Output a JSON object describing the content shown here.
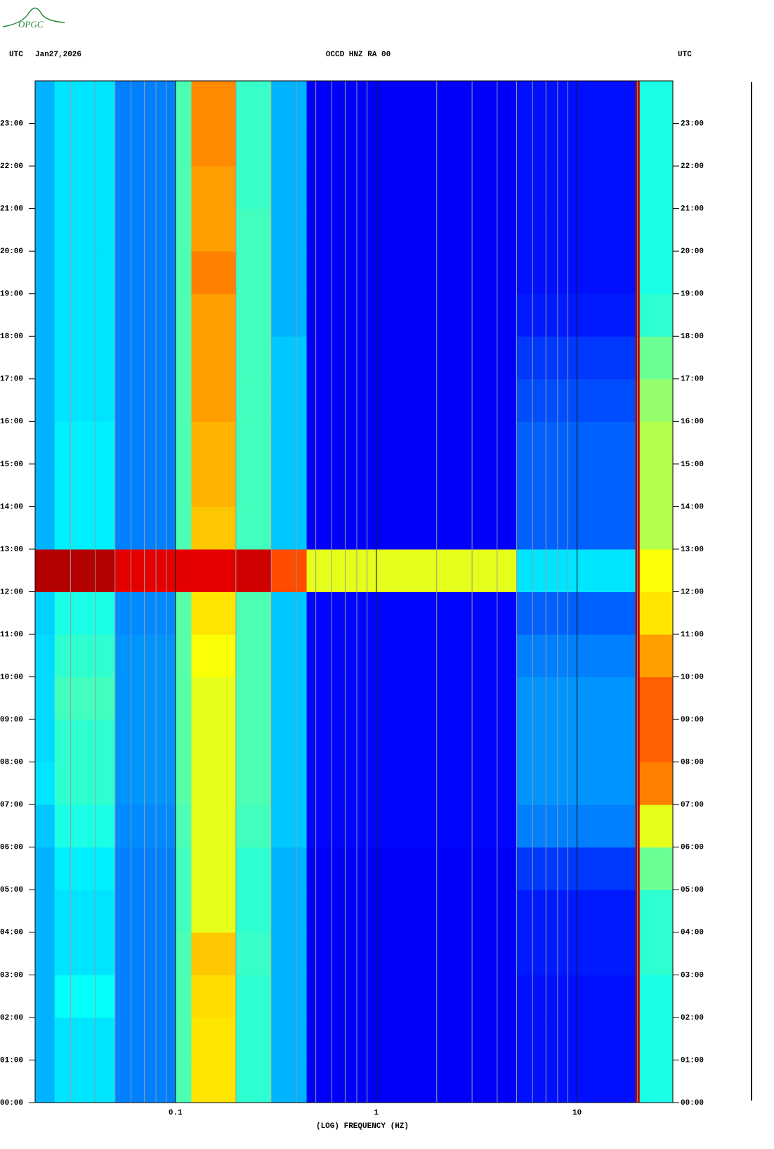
{
  "chart_data": {
    "type": "spectrogram",
    "logo": "OPGC",
    "left_label": "UTC",
    "date": "Jan27,2026",
    "title": "OCCD HNZ RA 00",
    "right_label": "UTC",
    "xlabel": "(LOG) FREQUENCY (HZ)",
    "xscale": "log",
    "colormap": "jet",
    "xlim": [
      0.02,
      30
    ],
    "ylim": [
      0,
      24
    ],
    "xticks": [
      0.1,
      1,
      10
    ],
    "xgrid": [
      0.02,
      0.03,
      0.04,
      0.05,
      0.06,
      0.07,
      0.08,
      0.09,
      0.1,
      0.2,
      0.3,
      0.4,
      0.5,
      0.6,
      0.7,
      0.8,
      0.9,
      1,
      2,
      3,
      4,
      5,
      6,
      7,
      8,
      9,
      10,
      20,
      30
    ],
    "yticks": [
      {
        "value": 0,
        "label": "00:00"
      },
      {
        "value": 1,
        "label": "01:00"
      },
      {
        "value": 2,
        "label": "02:00"
      },
      {
        "value": 3,
        "label": "03:00"
      },
      {
        "value": 4,
        "label": "04:00"
      },
      {
        "value": 5,
        "label": "05:00"
      },
      {
        "value": 6,
        "label": "06:00"
      },
      {
        "value": 7,
        "label": "07:00"
      },
      {
        "value": 8,
        "label": "08:00"
      },
      {
        "value": 9,
        "label": "09:00"
      },
      {
        "value": 10,
        "label": "10:00"
      },
      {
        "value": 11,
        "label": "11:00"
      },
      {
        "value": 12,
        "label": "12:00"
      },
      {
        "value": 13,
        "label": "13:00"
      },
      {
        "value": 14,
        "label": "14:00"
      },
      {
        "value": 15,
        "label": "15:00"
      },
      {
        "value": 16,
        "label": "16:00"
      },
      {
        "value": 17,
        "label": "17:00"
      },
      {
        "value": 18,
        "label": "18:00"
      },
      {
        "value": 19,
        "label": "19:00"
      },
      {
        "value": 20,
        "label": "20:00"
      },
      {
        "value": 21,
        "label": "21:00"
      },
      {
        "value": 22,
        "label": "22:00"
      },
      {
        "value": 23,
        "label": "23:00"
      }
    ],
    "xbins": [
      0.02,
      0.025,
      0.05,
      0.1,
      0.12,
      0.2,
      0.3,
      0.45,
      5,
      19.5,
      20.5,
      30
    ],
    "ybins": [
      0,
      1,
      2,
      3,
      4,
      5,
      6,
      7,
      8,
      9,
      10,
      11,
      12,
      13,
      14,
      15,
      16,
      17,
      18,
      19,
      20,
      21,
      22,
      23,
      24
    ],
    "values": [
      [
        0.3,
        0.35,
        0.25,
        0.45,
        0.65,
        0.42,
        0.3,
        0.12,
        0.14,
        0.95,
        0.4
      ],
      [
        0.3,
        0.35,
        0.25,
        0.45,
        0.65,
        0.42,
        0.3,
        0.12,
        0.14,
        0.95,
        0.4
      ],
      [
        0.3,
        0.38,
        0.25,
        0.45,
        0.66,
        0.42,
        0.3,
        0.12,
        0.14,
        0.95,
        0.4
      ],
      [
        0.3,
        0.35,
        0.25,
        0.45,
        0.68,
        0.43,
        0.3,
        0.12,
        0.15,
        0.95,
        0.42
      ],
      [
        0.3,
        0.35,
        0.25,
        0.44,
        0.6,
        0.42,
        0.3,
        0.12,
        0.15,
        0.95,
        0.42
      ],
      [
        0.3,
        0.36,
        0.25,
        0.44,
        0.6,
        0.42,
        0.3,
        0.12,
        0.18,
        0.95,
        0.48
      ],
      [
        0.32,
        0.4,
        0.26,
        0.45,
        0.6,
        0.44,
        0.32,
        0.13,
        0.25,
        0.95,
        0.6
      ],
      [
        0.35,
        0.42,
        0.27,
        0.46,
        0.6,
        0.45,
        0.32,
        0.13,
        0.27,
        0.95,
        0.75
      ],
      [
        0.34,
        0.42,
        0.27,
        0.46,
        0.6,
        0.45,
        0.32,
        0.13,
        0.27,
        0.95,
        0.78
      ],
      [
        0.34,
        0.44,
        0.27,
        0.46,
        0.6,
        0.45,
        0.32,
        0.13,
        0.27,
        0.95,
        0.78
      ],
      [
        0.34,
        0.42,
        0.27,
        0.46,
        0.62,
        0.45,
        0.32,
        0.13,
        0.25,
        0.95,
        0.72
      ],
      [
        0.33,
        0.4,
        0.26,
        0.46,
        0.65,
        0.45,
        0.32,
        0.13,
        0.22,
        0.95,
        0.65
      ],
      [
        0.95,
        0.95,
        0.9,
        0.9,
        0.9,
        0.92,
        0.8,
        0.6,
        0.35,
        0.95,
        0.62
      ],
      [
        0.3,
        0.36,
        0.25,
        0.45,
        0.68,
        0.44,
        0.32,
        0.12,
        0.22,
        0.95,
        0.55
      ],
      [
        0.3,
        0.36,
        0.25,
        0.45,
        0.7,
        0.44,
        0.32,
        0.12,
        0.22,
        0.95,
        0.55
      ],
      [
        0.3,
        0.36,
        0.25,
        0.45,
        0.7,
        0.44,
        0.32,
        0.12,
        0.22,
        0.95,
        0.55
      ],
      [
        0.3,
        0.35,
        0.25,
        0.45,
        0.72,
        0.44,
        0.32,
        0.12,
        0.2,
        0.95,
        0.52
      ],
      [
        0.3,
        0.35,
        0.25,
        0.45,
        0.72,
        0.44,
        0.32,
        0.12,
        0.18,
        0.95,
        0.48
      ],
      [
        0.3,
        0.35,
        0.25,
        0.45,
        0.72,
        0.44,
        0.3,
        0.12,
        0.15,
        0.95,
        0.42
      ],
      [
        0.3,
        0.35,
        0.25,
        0.45,
        0.75,
        0.44,
        0.3,
        0.12,
        0.14,
        0.95,
        0.4
      ],
      [
        0.3,
        0.35,
        0.25,
        0.45,
        0.72,
        0.44,
        0.3,
        0.12,
        0.14,
        0.95,
        0.4
      ],
      [
        0.3,
        0.35,
        0.25,
        0.45,
        0.72,
        0.43,
        0.3,
        0.12,
        0.14,
        0.95,
        0.4
      ],
      [
        0.3,
        0.35,
        0.25,
        0.45,
        0.74,
        0.43,
        0.3,
        0.12,
        0.14,
        0.95,
        0.4
      ],
      [
        0.3,
        0.35,
        0.25,
        0.45,
        0.74,
        0.43,
        0.3,
        0.12,
        0.14,
        0.95,
        0.4
      ]
    ]
  }
}
